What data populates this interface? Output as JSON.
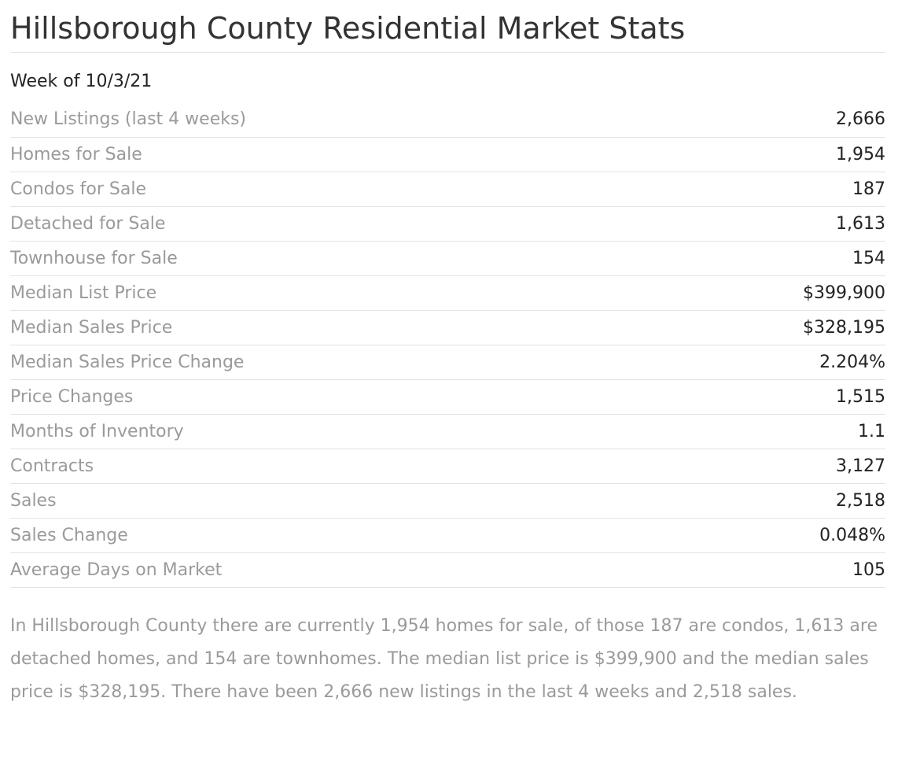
{
  "header": {
    "title": "Hillsborough County Residential Market Stats",
    "week_label": "Week of 10/3/21"
  },
  "stats": [
    {
      "label": "New Listings (last 4 weeks)",
      "value": "2,666"
    },
    {
      "label": "Homes for Sale",
      "value": "1,954"
    },
    {
      "label": "Condos for Sale",
      "value": "187"
    },
    {
      "label": "Detached for Sale",
      "value": "1,613"
    },
    {
      "label": "Townhouse for Sale",
      "value": "154"
    },
    {
      "label": "Median List Price",
      "value": "$399,900"
    },
    {
      "label": "Median Sales Price",
      "value": "$328,195"
    },
    {
      "label": "Median Sales Price Change",
      "value": "2.204%"
    },
    {
      "label": "Price Changes",
      "value": "1,515"
    },
    {
      "label": "Months of Inventory",
      "value": "1.1"
    },
    {
      "label": "Contracts",
      "value": "3,127"
    },
    {
      "label": "Sales",
      "value": "2,518"
    },
    {
      "label": "Sales Change",
      "value": "0.048%"
    },
    {
      "label": "Average Days on Market",
      "value": "105"
    }
  ],
  "summary": "In Hillsborough County there are currently 1,954 homes for sale, of those 187 are condos, 1,613 are detached homes, and 154 are townhomes. The median list price is $399,900 and the median sales price is $328,195. There have been 2,666 new listings in the last 4 weeks and 2,518 sales.",
  "colors": {
    "title_text": "#333333",
    "label_text": "#9a9a9a",
    "value_text": "#222222",
    "divider": "#e3e3e3"
  }
}
